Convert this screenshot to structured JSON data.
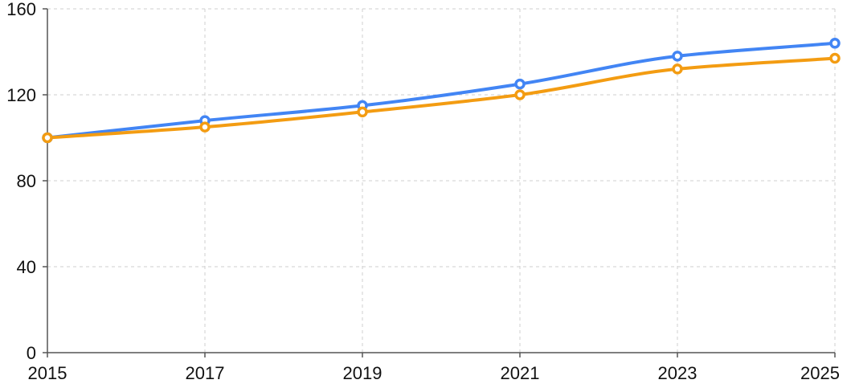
{
  "chart_data": {
    "type": "line",
    "title": "",
    "xlabel": "",
    "ylabel": "",
    "x": [
      2015,
      2017,
      2019,
      2021,
      2023,
      2025
    ],
    "x_ticks": [
      "2015",
      "2017",
      "2019",
      "2021",
      "2023",
      "2025"
    ],
    "y_ticks": [
      "0",
      "40",
      "80",
      "120",
      "160"
    ],
    "xlim": [
      2015,
      2025
    ],
    "ylim": [
      0,
      160
    ],
    "grid": true,
    "legend": "none",
    "series": [
      {
        "color": "#4285f4",
        "values": [
          100,
          108,
          115,
          125,
          138,
          144
        ]
      },
      {
        "color": "#f39c12",
        "values": [
          100,
          105,
          112,
          120,
          132,
          137
        ]
      }
    ]
  }
}
